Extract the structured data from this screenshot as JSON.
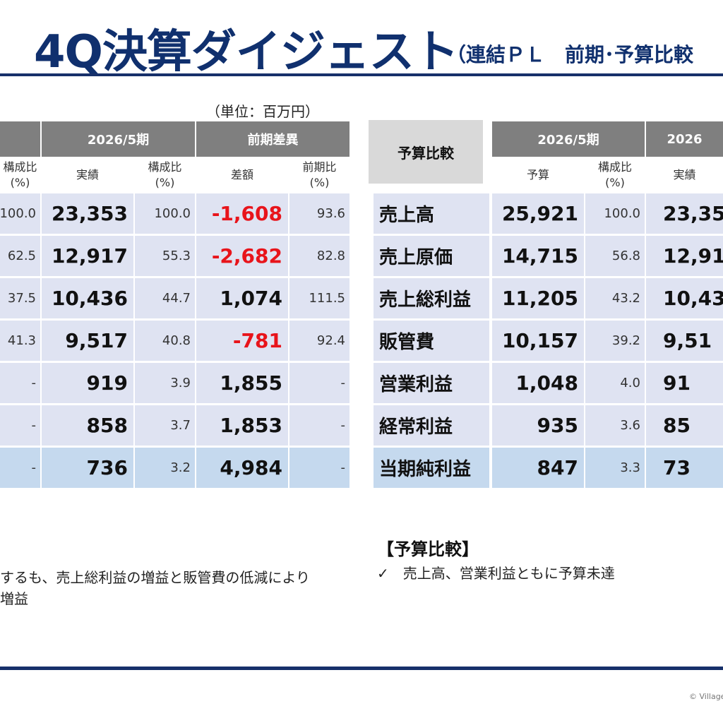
{
  "header": {
    "title": "4Q決算ダイジェスト",
    "subtitle": "（連結ＰＬ　前期･予算比較"
  },
  "unit_label": "（単位：百万円）",
  "left_table": {
    "group_headers": [
      "2026/5期",
      "前期差異"
    ],
    "sub_headers": [
      "構成比\n(%)",
      "実績",
      "構成比\n(%)",
      "差額",
      "前期比\n(%)"
    ],
    "rows": [
      {
        "prev_ratio": "100.0",
        "actual": "23,353",
        "ratio": "100.0",
        "diff": "-1,608",
        "yoy": "93.6"
      },
      {
        "prev_ratio": "62.5",
        "actual": "12,917",
        "ratio": "55.3",
        "diff": "-2,682",
        "yoy": "82.8"
      },
      {
        "prev_ratio": "37.5",
        "actual": "10,436",
        "ratio": "44.7",
        "diff": "1,074",
        "yoy": "111.5"
      },
      {
        "prev_ratio": "41.3",
        "actual": "9,517",
        "ratio": "40.8",
        "diff": "-781",
        "yoy": "92.4"
      },
      {
        "prev_ratio": "-",
        "actual": "919",
        "ratio": "3.9",
        "diff": "1,855",
        "yoy": "-"
      },
      {
        "prev_ratio": "-",
        "actual": "858",
        "ratio": "3.7",
        "diff": "1,853",
        "yoy": "-"
      },
      {
        "prev_ratio": "-",
        "actual": "736",
        "ratio": "3.2",
        "diff": "4,984",
        "yoy": "-"
      }
    ]
  },
  "right_table": {
    "corner_label": "予算比較",
    "group_headers": [
      "2026/5期",
      "2026"
    ],
    "sub_headers": [
      "予算",
      "構成比\n(%)",
      "実績"
    ],
    "rows": [
      {
        "label": "売上高",
        "budget": "25,921",
        "ratio": "100.0",
        "actual": "23,35"
      },
      {
        "label": "売上原価",
        "budget": "14,715",
        "ratio": "56.8",
        "actual": "12,91"
      },
      {
        "label": "売上総利益",
        "budget": "11,205",
        "ratio": "43.2",
        "actual": "10,43"
      },
      {
        "label": "販管費",
        "budget": "10,157",
        "ratio": "39.2",
        "actual": "9,51"
      },
      {
        "label": "営業利益",
        "budget": "1,048",
        "ratio": "4.0",
        "actual": "91"
      },
      {
        "label": "経常利益",
        "budget": "935",
        "ratio": "3.6",
        "actual": "85"
      },
      {
        "label": "当期純利益",
        "budget": "847",
        "ratio": "3.3",
        "actual": "73"
      }
    ]
  },
  "notes": {
    "left_lines": [
      "するも、売上総利益の増益と販管費の低減により",
      "増益"
    ],
    "right_heading": "【予算比較】",
    "right_items": [
      "✓　売上高、営業利益ともに予算未達"
    ]
  },
  "footer": {
    "copyright": "© Village"
  },
  "colors": {
    "title": "#10306e",
    "rule": "#17306a",
    "header_dark": "#7f7f7f",
    "header_light": "#d9d9d9",
    "row_fill": "#dfe3f2",
    "row_last_fill": "#c5d9ee",
    "negative": "#e8141b"
  }
}
